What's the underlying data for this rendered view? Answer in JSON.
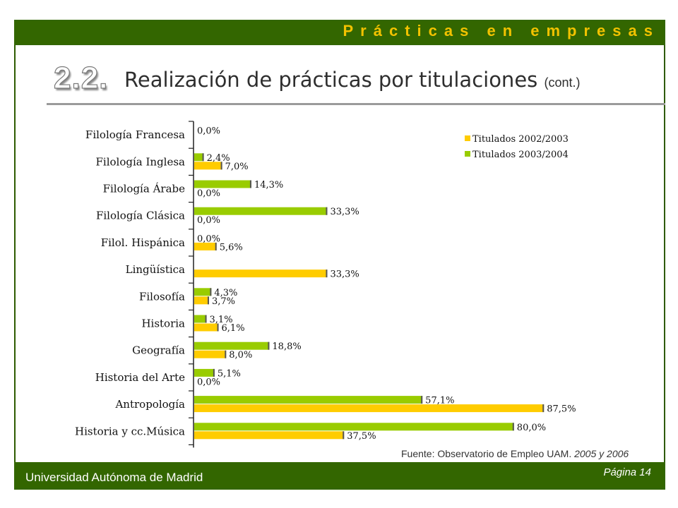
{
  "header": {
    "band_title": "Prácticas en empresas"
  },
  "section": {
    "number": "2.2.",
    "title": "Realización de prácticas por titulaciones",
    "title_suffix": "(cont.)"
  },
  "footer": {
    "source_prefix": "Fuente: Observatorio de Empleo UAM. ",
    "source_years": "2005 y 2006",
    "university": "Universidad Autónoma de Madrid",
    "page": "Página 14"
  },
  "colors": {
    "band": "#336600",
    "band_title": "#f2c200",
    "series_2002": "#ffcc00",
    "series_2003": "#99cc00"
  },
  "chart_data": {
    "type": "bar",
    "orientation": "horizontal",
    "categories": [
      "Filología Francesa",
      "Filología Inglesa",
      "Filología Árabe",
      "Filología Clásica",
      "Filol. Hispánica",
      "Lingüística",
      "Filosofía",
      "Historia",
      "Geografía",
      "Historia del Arte",
      "Antropología",
      "Historia y cc.Música"
    ],
    "series": [
      {
        "name": "Titulados 2002/2003",
        "color": "#ffcc00",
        "values": [
          0.0,
          7.0,
          0.0,
          0.0,
          5.6,
          33.3,
          3.7,
          6.1,
          8.0,
          0.0,
          87.5,
          37.5
        ],
        "labels": [
          "",
          "7,0%",
          "0,0%",
          "0,0%",
          "5,6%",
          "33,3%",
          "3,7%",
          "6,1%",
          "8,0%",
          "0,0%",
          "87,5%",
          "37,5%"
        ]
      },
      {
        "name": "Titulados 2003/2004",
        "color": "#99cc00",
        "values": [
          0.0,
          2.4,
          14.3,
          33.3,
          0.0,
          null,
          4.3,
          3.1,
          18.8,
          5.1,
          57.1,
          80.0
        ],
        "labels": [
          "0,0%",
          "2,4%",
          "14,3%",
          "33,3%",
          "0,0%",
          "",
          "4,3%",
          "3,1%",
          "18,8%",
          "5,1%",
          "57,1%",
          "80,0%"
        ]
      }
    ],
    "xlim": [
      0,
      100
    ],
    "grid": false,
    "legend": "top-right"
  }
}
